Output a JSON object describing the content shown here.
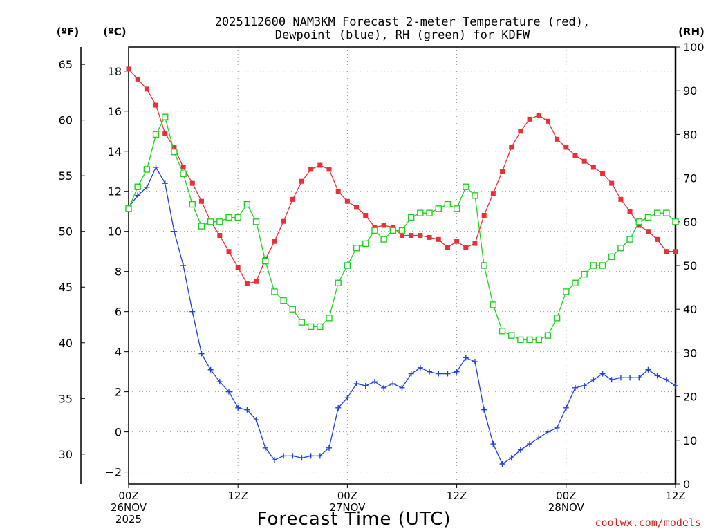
{
  "title": {
    "line1": "2025112600 NAM3KM Forecast 2-meter Temperature (red),",
    "line2": "Dewpoint (blue), RH (green) for KDFW"
  },
  "credit": "coolwx.com/models",
  "colors": {
    "temperature": "#e8303a",
    "dewpoint": "#2040e0",
    "rh": "#20d020",
    "credit": "#d02020"
  },
  "chart_data": {
    "type": "line",
    "title": "2025112600 NAM3KM Forecast 2-meter Temperature (red), Dewpoint (blue), RH (green) for KDFW",
    "xlabel": "Forecast Time (UTC)",
    "x_unit": "forecast hour",
    "xlim": [
      0,
      60
    ],
    "x_ticks": [
      {
        "x": 0,
        "lines": [
          "00Z",
          "26NOV",
          "2025"
        ]
      },
      {
        "x": 12,
        "lines": [
          "12Z"
        ]
      },
      {
        "x": 24,
        "lines": [
          "00Z",
          "27NOV"
        ]
      },
      {
        "x": 36,
        "lines": [
          "12Z"
        ]
      },
      {
        "x": 48,
        "lines": [
          "00Z",
          "28NOV"
        ]
      },
      {
        "x": 60,
        "lines": [
          "12Z"
        ]
      }
    ],
    "y_left_celsius": {
      "label": "(ºC)",
      "ylim": [
        -2.6,
        19.2
      ],
      "ticks": [
        -2,
        0,
        2,
        4,
        6,
        8,
        10,
        12,
        14,
        16,
        18
      ]
    },
    "y_left_fahrenheit": {
      "label": "(ºF)",
      "ylim": [
        27.32,
        66.56
      ],
      "ticks": [
        30,
        35,
        40,
        45,
        50,
        55,
        60,
        65
      ]
    },
    "y_right_rh": {
      "label": "(RH)",
      "ylim": [
        0,
        100
      ],
      "ticks": [
        0,
        10,
        20,
        30,
        40,
        50,
        60,
        70,
        80,
        90,
        100
      ]
    },
    "x": [
      0,
      1,
      2,
      3,
      4,
      5,
      6,
      7,
      8,
      9,
      10,
      11,
      12,
      13,
      14,
      15,
      16,
      17,
      18,
      19,
      20,
      21,
      22,
      23,
      24,
      25,
      26,
      27,
      28,
      29,
      30,
      31,
      32,
      33,
      34,
      35,
      36,
      37,
      38,
      39,
      40,
      41,
      42,
      43,
      44,
      45,
      46,
      47,
      48,
      49,
      50,
      51,
      52,
      53,
      54,
      55,
      56,
      57,
      58,
      59,
      60
    ],
    "series": [
      {
        "name": "Temperature",
        "unit": "C",
        "axis": "celsius",
        "marker": "filled-square",
        "values": [
          18.1,
          17.6,
          17.1,
          16.3,
          14.9,
          14.2,
          13.2,
          12.4,
          11.5,
          10.5,
          9.8,
          9.0,
          8.2,
          7.4,
          7.5,
          8.6,
          9.5,
          10.5,
          11.6,
          12.5,
          13.1,
          13.3,
          13.1,
          12.0,
          11.5,
          11.2,
          10.8,
          10.2,
          10.3,
          10.2,
          9.8,
          9.8,
          9.8,
          9.7,
          9.6,
          9.2,
          9.5,
          9.2,
          9.4,
          10.8,
          11.9,
          13.0,
          14.2,
          15.0,
          15.6,
          15.8,
          15.5,
          14.6,
          14.2,
          13.8,
          13.5,
          13.2,
          12.9,
          12.4,
          11.6,
          11.0,
          10.3,
          10.0,
          9.6,
          9.0,
          9.0
        ]
      },
      {
        "name": "Dewpoint",
        "unit": "C",
        "axis": "celsius",
        "marker": "plus",
        "values": [
          11.2,
          11.8,
          12.2,
          13.2,
          12.4,
          10.0,
          8.3,
          6.0,
          3.9,
          3.1,
          2.5,
          2.0,
          1.2,
          1.1,
          0.6,
          -0.8,
          -1.4,
          -1.2,
          -1.2,
          -1.3,
          -1.2,
          -1.2,
          -0.8,
          1.2,
          1.7,
          2.4,
          2.3,
          2.5,
          2.2,
          2.4,
          2.2,
          2.9,
          3.2,
          3.0,
          2.9,
          2.9,
          3.0,
          3.7,
          3.5,
          1.1,
          -0.6,
          -1.6,
          -1.3,
          -0.9,
          -0.6,
          -0.3,
          0.0,
          0.2,
          1.2,
          2.2,
          2.3,
          2.6,
          2.9,
          2.6,
          2.7,
          2.7,
          2.7,
          3.1,
          2.8,
          2.6,
          2.3
        ]
      },
      {
        "name": "RH",
        "unit": "%",
        "axis": "rh",
        "marker": "open-square",
        "values": [
          63,
          68,
          72,
          80,
          84,
          76,
          71,
          64,
          59,
          60,
          60,
          61,
          61,
          64,
          60,
          51,
          44,
          42,
          40,
          37,
          36,
          36,
          38,
          46,
          50,
          54,
          55,
          58,
          56,
          58,
          58,
          61,
          62,
          62,
          63,
          64,
          63,
          68,
          66,
          50,
          41,
          35,
          34,
          33,
          33,
          33,
          34,
          38,
          44,
          46,
          48,
          50,
          50,
          52,
          54,
          56,
          60,
          61,
          62,
          62,
          60
        ]
      }
    ]
  }
}
